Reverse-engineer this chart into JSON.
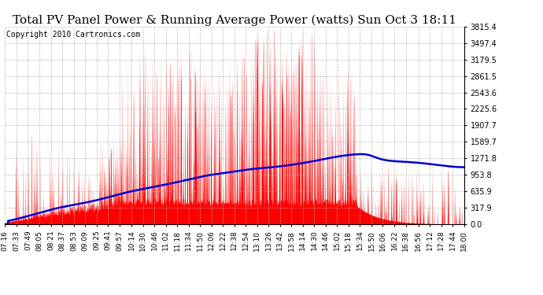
{
  "title": "Total PV Panel Power & Running Average Power (watts) Sun Oct 3 18:11",
  "copyright": "Copyright 2010 Cartronics.com",
  "yticks": [
    0.0,
    317.9,
    635.9,
    953.8,
    1271.8,
    1589.7,
    1907.7,
    2225.6,
    2543.6,
    2861.5,
    3179.5,
    3497.4,
    3815.4
  ],
  "ymax": 3815.4,
  "ymin": 0.0,
  "xtick_labels": [
    "07:16",
    "07:33",
    "07:49",
    "08:05",
    "08:21",
    "08:37",
    "08:53",
    "09:09",
    "09:25",
    "09:41",
    "09:57",
    "10:14",
    "10:30",
    "10:46",
    "11:02",
    "11:18",
    "11:34",
    "11:50",
    "12:06",
    "12:22",
    "12:38",
    "12:54",
    "13:10",
    "13:26",
    "13:42",
    "13:58",
    "14:14",
    "14:30",
    "14:46",
    "15:02",
    "15:18",
    "15:34",
    "15:50",
    "16:06",
    "16:22",
    "16:38",
    "16:56",
    "17:12",
    "17:28",
    "17:44",
    "18:00"
  ],
  "background_color": "#ffffff",
  "grid_color": "#aaaaaa",
  "bar_color": "#ff0000",
  "line_color": "#0000cc",
  "title_fontsize": 11,
  "copyright_fontsize": 7,
  "figwidth": 6.9,
  "figheight": 3.75,
  "dpi": 100,
  "hour_start": 7.2667,
  "hour_end": 18.0,
  "running_avg_keypoints_x": [
    7.2667,
    7.55,
    8.0,
    8.5,
    9.0,
    9.5,
    10.0,
    10.5,
    11.0,
    11.5,
    12.0,
    12.5,
    13.0,
    13.5,
    14.0,
    14.5,
    15.0,
    15.5,
    15.75,
    16.0,
    16.5,
    17.0,
    17.5,
    18.0
  ],
  "running_avg_keypoints_y": [
    50,
    100,
    200,
    310,
    390,
    480,
    590,
    680,
    760,
    850,
    940,
    1000,
    1060,
    1100,
    1150,
    1220,
    1300,
    1350,
    1340,
    1270,
    1210,
    1180,
    1130,
    1100
  ]
}
